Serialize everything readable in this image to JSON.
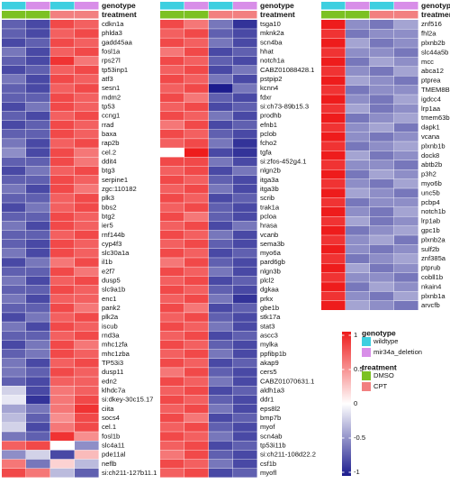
{
  "chart_data": {
    "type": "heatmap",
    "annotations": [
      {
        "name": "genotype",
        "values": [
          "wildtype",
          "mir34a_deletion",
          "wildtype",
          "mir34a_deletion"
        ],
        "levels": [
          {
            "label": "wildtype",
            "color": "#3ecfe0"
          },
          {
            "label": "mir34a_deletion",
            "color": "#d88ee8"
          }
        ]
      },
      {
        "name": "treatment",
        "values": [
          "DMSO",
          "DMSO",
          "CPT",
          "CPT"
        ],
        "levels": [
          {
            "label": "DMSO",
            "color": "#7cc123"
          },
          {
            "label": "CPT",
            "color": "#f28080"
          }
        ]
      }
    ],
    "colorbar": {
      "lim": [
        -1,
        1
      ],
      "ticks": [
        1,
        0.5,
        0,
        -0.5,
        -1
      ],
      "colors": [
        "#1c1c8e",
        "#ffffff",
        "#ee1c1c"
      ]
    },
    "panels": [
      {
        "rows": [
          "cdkn1a",
          "phlda3",
          "gadd45aa",
          "fosl1a",
          "rps27l",
          "tp53inp1",
          "atf3",
          "sesn1",
          "mdm2",
          "tp53",
          "ccng1",
          "rrad",
          "baxa",
          "rap2b",
          "cel.2",
          "ddit4",
          "btg3",
          "serpine1",
          "zgc:110182",
          "plk3",
          "bbs2",
          "btg2",
          "ier5",
          "rnf144b",
          "cyp4f3",
          "slc30a1a",
          "il1b",
          "e2f7",
          "dusp5",
          "slc9a1b",
          "enc1",
          "pank2",
          "plk2a",
          "iscub",
          "rnd3a",
          "mhc1zfa",
          "mhc1zba",
          "TP53i3",
          "dusp11",
          "edn2",
          "klhdc7a",
          "si:dkey-30c15.17",
          "ciita",
          "socs4",
          "cel.1",
          "fosl1b",
          "slc4a11",
          "pde11al",
          "neflb",
          "si:ch211-127b11.1"
        ],
        "values": [
          [
            -0.7,
            -0.8,
            0.8,
            0.7
          ],
          [
            -0.7,
            -0.8,
            0.7,
            0.8
          ],
          [
            -0.8,
            -0.7,
            0.8,
            0.7
          ],
          [
            -0.6,
            -0.8,
            0.7,
            0.8
          ],
          [
            -0.7,
            -0.8,
            0.9,
            0.6
          ],
          [
            -0.8,
            -0.7,
            0.7,
            0.8
          ],
          [
            -0.6,
            -0.8,
            0.8,
            0.7
          ],
          [
            -0.7,
            -0.8,
            0.7,
            0.8
          ],
          [
            -0.7,
            -0.7,
            0.8,
            0.7
          ],
          [
            -0.8,
            -0.6,
            0.8,
            0.7
          ],
          [
            -0.7,
            -0.8,
            0.7,
            0.8
          ],
          [
            -0.8,
            -0.7,
            0.8,
            0.7
          ],
          [
            -0.7,
            -0.7,
            0.8,
            0.7
          ],
          [
            -0.6,
            -0.8,
            0.7,
            0.8
          ],
          [
            -0.5,
            -0.8,
            0.8,
            0.6
          ],
          [
            -0.7,
            -0.7,
            0.8,
            0.6
          ],
          [
            -0.8,
            -0.6,
            0.7,
            0.8
          ],
          [
            -0.7,
            -0.7,
            0.8,
            0.7
          ],
          [
            -0.6,
            -0.8,
            0.8,
            0.6
          ],
          [
            -0.7,
            -0.7,
            0.7,
            0.8
          ],
          [
            -0.8,
            -0.6,
            0.7,
            0.8
          ],
          [
            -0.7,
            -0.7,
            0.8,
            0.7
          ],
          [
            -0.6,
            -0.8,
            0.8,
            0.7
          ],
          [
            -0.7,
            -0.7,
            0.7,
            0.8
          ],
          [
            -0.7,
            -0.8,
            0.8,
            0.7
          ],
          [
            -0.6,
            -0.8,
            0.8,
            0.7
          ],
          [
            -0.8,
            -0.6,
            0.6,
            0.8
          ],
          [
            -0.7,
            -0.7,
            0.8,
            0.6
          ],
          [
            -0.6,
            -0.8,
            0.7,
            0.8
          ],
          [
            -0.7,
            -0.7,
            0.8,
            0.7
          ],
          [
            -0.6,
            -0.8,
            0.7,
            0.7
          ],
          [
            -0.7,
            -0.7,
            0.8,
            0.6
          ],
          [
            -0.8,
            -0.6,
            0.7,
            0.8
          ],
          [
            -0.6,
            -0.8,
            0.8,
            0.7
          ],
          [
            -0.7,
            -0.7,
            0.7,
            0.8
          ],
          [
            -0.8,
            -0.6,
            0.8,
            0.6
          ],
          [
            -0.7,
            -0.6,
            0.8,
            0.7
          ],
          [
            -0.6,
            -0.8,
            0.7,
            0.8
          ],
          [
            -0.6,
            -0.7,
            0.8,
            0.7
          ],
          [
            -0.7,
            -0.8,
            0.7,
            0.7
          ],
          [
            -0.2,
            -0.8,
            0.6,
            0.7
          ],
          [
            -0.1,
            -0.9,
            0.6,
            0.8
          ],
          [
            -0.4,
            -0.6,
            0.6,
            0.9
          ],
          [
            -0.3,
            -0.7,
            0.5,
            0.8
          ],
          [
            -0.2,
            -0.8,
            0.6,
            0.8
          ],
          [
            -0.6,
            -0.7,
            0.9,
            0.5
          ],
          [
            0.7,
            0.8,
            0.0,
            -0.5
          ],
          [
            -0.5,
            -0.2,
            -0.8,
            0.3
          ],
          [
            0.6,
            -0.6,
            0.2,
            -0.3
          ],
          [
            0.8,
            0.6,
            -0.3,
            -0.7
          ]
        ]
      },
      {
        "rows": [
          "tsga10",
          "mknk2a",
          "scn4ba",
          "hhat",
          "notch1a",
          "CABZ01088428.1",
          "pstpip2",
          "kcnn4",
          "fdxr",
          "si:ch73-89b15.3",
          "prodhb",
          "efnb1",
          "pclob",
          "fcho2",
          "tgfa",
          "si:zfos-452g4.1",
          "nlgn2b",
          "itga3a",
          "itga3b",
          "scrib",
          "trak1a",
          "pcloa",
          "hrasa",
          "vcanb",
          "sema3b",
          "myo6a",
          "pard6gb",
          "nlgn3b",
          "plcl2",
          "dgkaa",
          "prkx",
          "gbe1b",
          "stk17a",
          "stat3",
          "ascc3",
          "mylka",
          "ppfibp1b",
          "akap9",
          "cers5",
          "CABZ01070631.1",
          "aldh1a3",
          "ddr1",
          "eps8l2",
          "bmp7b",
          "myof",
          "scn4ab",
          "tp53i11b",
          "si:ch211-108d22.2",
          "csf1b",
          "myofl"
        ],
        "values": [
          [
            0.8,
            0.6,
            -0.6,
            -0.9
          ],
          [
            0.7,
            0.8,
            -0.7,
            -0.8
          ],
          [
            0.8,
            0.7,
            -0.6,
            -0.8
          ],
          [
            0.6,
            0.8,
            -0.8,
            -0.7
          ],
          [
            0.8,
            0.7,
            -0.7,
            -0.8
          ],
          [
            0.7,
            0.8,
            -0.8,
            -0.6
          ],
          [
            0.8,
            0.7,
            -0.6,
            -0.8
          ],
          [
            0.7,
            0.8,
            -1.0,
            -0.6
          ],
          [
            0.8,
            0.6,
            -0.7,
            -0.8
          ],
          [
            0.7,
            0.8,
            -0.8,
            -0.7
          ],
          [
            0.8,
            0.7,
            -0.6,
            -0.8
          ],
          [
            0.6,
            0.8,
            -0.8,
            -0.7
          ],
          [
            0.8,
            0.7,
            -0.7,
            -0.8
          ],
          [
            0.7,
            0.8,
            -0.6,
            -0.9
          ],
          [
            0.0,
            1.0,
            -0.8,
            -0.9
          ],
          [
            0.8,
            0.8,
            -0.6,
            -0.8
          ],
          [
            0.7,
            0.8,
            -0.8,
            -0.6
          ],
          [
            0.8,
            0.7,
            -0.7,
            -0.8
          ],
          [
            0.7,
            0.8,
            -0.6,
            -0.8
          ],
          [
            0.8,
            0.7,
            -0.8,
            -0.7
          ],
          [
            0.7,
            0.8,
            -0.7,
            -0.8
          ],
          [
            0.8,
            0.6,
            -0.7,
            -0.8
          ],
          [
            0.7,
            0.8,
            -0.8,
            -0.6
          ],
          [
            0.8,
            0.7,
            -0.6,
            -0.8
          ],
          [
            0.7,
            0.8,
            -0.7,
            -0.8
          ],
          [
            0.8,
            0.7,
            -0.8,
            -0.7
          ],
          [
            0.6,
            0.8,
            -0.7,
            -0.8
          ],
          [
            0.8,
            0.7,
            -0.6,
            -0.8
          ],
          [
            0.7,
            0.8,
            -0.8,
            -0.7
          ],
          [
            0.8,
            0.7,
            -0.7,
            -0.8
          ],
          [
            0.7,
            0.8,
            -0.6,
            -0.9
          ],
          [
            0.8,
            0.6,
            -0.8,
            -0.7
          ],
          [
            0.7,
            0.8,
            -0.7,
            -0.8
          ],
          [
            0.8,
            0.7,
            -0.6,
            -0.8
          ],
          [
            0.7,
            0.8,
            -0.8,
            -0.7
          ],
          [
            0.8,
            0.7,
            -0.7,
            -0.8
          ],
          [
            0.7,
            0.8,
            -0.6,
            -0.8
          ],
          [
            0.8,
            0.7,
            -0.8,
            -0.7
          ],
          [
            0.6,
            0.8,
            -0.7,
            -0.8
          ],
          [
            0.8,
            0.7,
            -0.6,
            -0.8
          ],
          [
            0.7,
            0.8,
            -0.8,
            -0.7
          ],
          [
            0.8,
            0.7,
            -0.7,
            -0.8
          ],
          [
            0.7,
            0.8,
            -0.6,
            -0.8
          ],
          [
            0.8,
            0.6,
            -0.8,
            -0.7
          ],
          [
            0.7,
            0.8,
            -0.7,
            -0.8
          ],
          [
            0.8,
            0.7,
            -0.6,
            -0.8
          ],
          [
            0.7,
            0.8,
            -0.8,
            -0.7
          ],
          [
            0.6,
            0.8,
            -0.7,
            -0.8
          ],
          [
            0.8,
            0.7,
            -0.6,
            -0.8
          ],
          [
            0.7,
            0.8,
            -0.8,
            -0.7
          ]
        ]
      },
      {
        "rows": [
          "znf516",
          "fhl2a",
          "plxnb2b",
          "slc44a5b",
          "mcc",
          "abca12",
          "ptprea",
          "TMEM8B",
          "igdcc4",
          "lrp1aa",
          "tmem63ba",
          "dapk1",
          "vcana",
          "plxnb1b",
          "dock8",
          "abtb2b",
          "p3h2",
          "myo6b",
          "unc5b",
          "pcbp4",
          "notch1b",
          "lrp1ab",
          "gpc1b",
          "plxnb2a",
          "sulf2b",
          "znf385a",
          "ptprub",
          "cobll1b",
          "nkain4",
          "plxnb1a",
          "arvcfb"
        ],
        "values": [
          [
            1.0,
            -0.5,
            -0.6,
            -0.4
          ],
          [
            0.9,
            -0.6,
            -0.5,
            -0.5
          ],
          [
            1.0,
            -0.4,
            -0.6,
            -0.5
          ],
          [
            0.9,
            -0.5,
            -0.5,
            -0.6
          ],
          [
            1.0,
            -0.6,
            -0.4,
            -0.5
          ],
          [
            0.9,
            -0.5,
            -0.6,
            -0.4
          ],
          [
            1.0,
            -0.4,
            -0.5,
            -0.6
          ],
          [
            0.9,
            -0.6,
            -0.5,
            -0.5
          ],
          [
            1.0,
            -0.5,
            -0.6,
            -0.4
          ],
          [
            0.9,
            -0.4,
            -0.6,
            -0.5
          ],
          [
            1.0,
            -0.6,
            -0.5,
            -0.4
          ],
          [
            0.9,
            -0.5,
            -0.4,
            -0.6
          ],
          [
            1.0,
            -0.5,
            -0.6,
            -0.5
          ],
          [
            0.9,
            -0.6,
            -0.5,
            -0.4
          ],
          [
            1.0,
            -0.4,
            -0.6,
            -0.5
          ],
          [
            0.9,
            -0.5,
            -0.5,
            -0.6
          ],
          [
            1.0,
            -0.6,
            -0.4,
            -0.5
          ],
          [
            0.9,
            -0.5,
            -0.6,
            -0.4
          ],
          [
            1.0,
            -0.4,
            -0.5,
            -0.6
          ],
          [
            0.9,
            -0.6,
            -0.5,
            -0.5
          ],
          [
            1.0,
            -0.5,
            -0.6,
            -0.4
          ],
          [
            0.9,
            -0.4,
            -0.6,
            -0.5
          ],
          [
            1.0,
            -0.6,
            -0.5,
            -0.4
          ],
          [
            0.9,
            -0.5,
            -0.4,
            -0.6
          ],
          [
            1.0,
            -0.5,
            -0.6,
            -0.5
          ],
          [
            0.9,
            -0.6,
            -0.5,
            -0.4
          ],
          [
            1.0,
            -0.4,
            -0.6,
            -0.5
          ],
          [
            0.9,
            -0.5,
            -0.5,
            -0.6
          ],
          [
            1.0,
            -0.6,
            -0.4,
            -0.5
          ],
          [
            0.9,
            -0.5,
            -0.6,
            -0.4
          ],
          [
            1.0,
            -0.4,
            -0.5,
            -0.6
          ]
        ]
      }
    ]
  }
}
